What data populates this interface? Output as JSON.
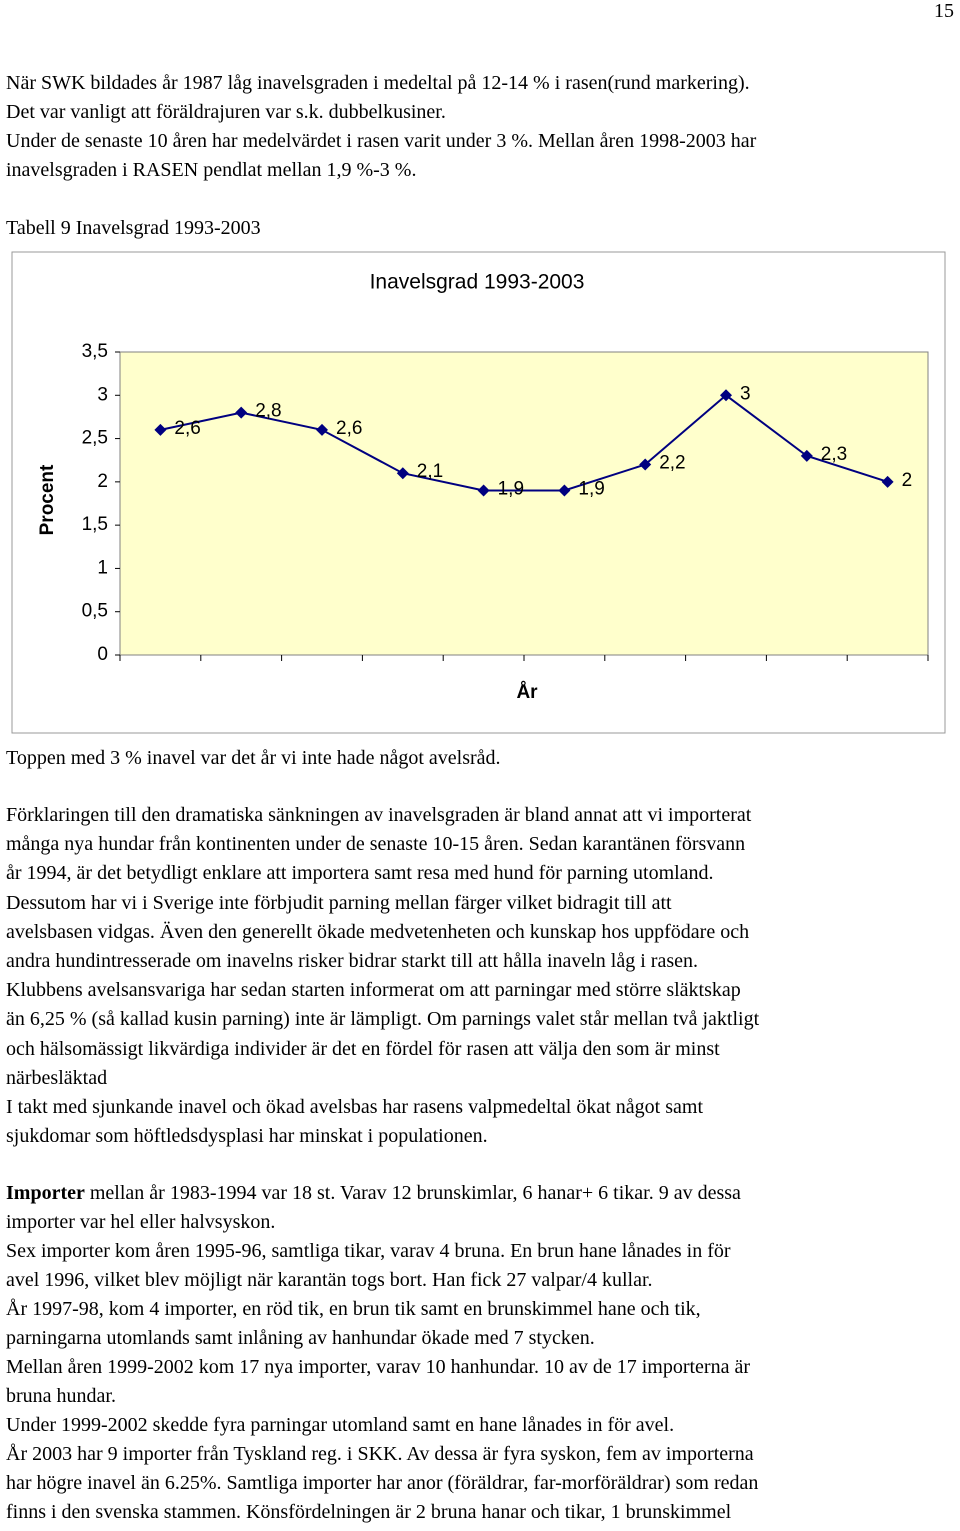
{
  "page_number": "15",
  "intro_lines": [
    "När SWK bildades år 1987 låg inavelsgraden i medeltal på 12-14 % i rasen(rund markering).",
    "Det var vanligt att föräldrajuren var s.k. dubbelkusiner.",
    "Under de senaste 10 åren har medelvärdet i rasen varit under 3 %. Mellan åren 1998-2003 har",
    "inavelsgraden i RASEN pendlat mellan 1,9 %-3 %."
  ],
  "caption": "Tabell 9 Inavelsgrad 1993-2003",
  "chart_data": {
    "type": "line",
    "title": "Inavelsgrad 1993-2003",
    "y_label": "Procent",
    "x_label": "År",
    "categories": [
      null,
      null,
      null,
      null,
      null,
      null,
      null,
      null,
      null,
      null
    ],
    "values": [
      2.6,
      2.8,
      2.6,
      2.1,
      1.9,
      1.9,
      2.2,
      3,
      2.3,
      2
    ],
    "value_labels": [
      "2,6",
      "2,8",
      "2,6",
      "2,1",
      "1,9",
      "1,9",
      "2,2",
      "3",
      "2,3",
      "2"
    ],
    "color": "#000080",
    "background": "#ffffcc",
    "ylim": [
      0,
      3.5
    ],
    "yticks": [
      0,
      {
        "value": 0.5,
        "label": "0,5"
      },
      1,
      {
        "value": 1.5,
        "label": "1,5"
      },
      2,
      {
        "value": 2.5,
        "label": "2,5"
      },
      3,
      {
        "value": 3.5,
        "label": "3,5"
      }
    ],
    "grid": false
  },
  "note": "Toppen med 3 % inavel var det år vi inte hade något avelsråd.",
  "body_lines": [
    "Förklaringen till den dramatiska sänkningen av inavelsgraden är bland annat att vi importerat",
    "många nya hundar från kontinenten under de senaste 10-15 åren. Sedan karantänen försvann",
    "år 1994, är det betydligt enklare att importera samt resa med hund för parning utomland.",
    "Dessutom har vi i Sverige inte förbjudit parning mellan färger vilket bidragit till att",
    "avelsbasen vidgas. Även den generellt ökade medvetenheten och kunskap hos uppfödare och",
    "andra hundintresserade om inavelns risker bidrar starkt till att hålla inaveln låg i rasen.",
    "Klubbens avelsansvariga har sedan starten informerat om att parningar med större släktskap",
    "än 6,25 % (så kallad kusin parning) inte är lämpligt. Om parnings valet står mellan två jaktligt",
    "och hälsomässigt likvärdiga individer är det en fördel för rasen att välja den som är minst",
    "närbesläktad",
    "I takt med sjunkande inavel och ökad avelsbas har rasens valpmedeltal ökat något samt",
    "sjukdomar som höftledsdysplasi har minskat i populationen."
  ],
  "imports": {
    "heading": "Importer",
    "lines": [
      " mellan år 1983-1994 var 18 st. Varav 12 brunskimlar, 6 hanar+ 6 tikar. 9 av dessa",
      "importer var hel eller halvsyskon.",
      "Sex importer kom åren 1995-96, samtliga tikar, varav 4 bruna. En brun hane lånades in för",
      "avel 1996, vilket blev möjligt när karantän togs bort. Han fick 27 valpar/4 kullar.",
      "År 1997-98, kom 4 importer, en röd tik, en brun tik samt en brunskimmel hane och tik,",
      "parningarna utomlands samt inlåning av hanhundar ökade med 7 stycken.",
      "Mellan åren 1999-2002 kom 17 nya importer, varav 10 hanhundar. 10 av de 17 importerna är",
      "bruna hundar.",
      "Under 1999-2002 skedde fyra parningar utomland samt en hane lånades in för avel.",
      "År 2003 har 9 importer från Tyskland reg. i SKK. Av dessa är fyra syskon, fem av importerna",
      "har högre inavel än 6.25%. Samtliga importer har anor (föräldrar, far-morföräldrar) som redan",
      "finns i den svenska stammen. Könsfördelningen är 2 bruna hanar och tikar, 1 brunskimmel"
    ]
  }
}
